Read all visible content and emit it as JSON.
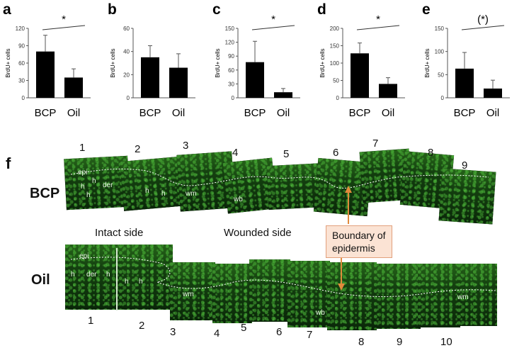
{
  "panels": [
    {
      "letter": "a",
      "ylabel": "BrdU+ cells",
      "yticks": [
        "0",
        "30",
        "60",
        "90",
        "120"
      ],
      "ymax": 120,
      "categories": [
        "BCP",
        "Oil"
      ],
      "values": [
        80,
        35
      ],
      "errors": [
        28,
        15
      ],
      "sig": "*"
    },
    {
      "letter": "b",
      "ylabel": "BrdU+ cells",
      "yticks": [
        "0",
        "20",
        "40",
        "60"
      ],
      "ymax": 60,
      "categories": [
        "BCP",
        "Oil"
      ],
      "values": [
        35,
        26
      ],
      "errors": [
        10,
        12
      ],
      "sig": ""
    },
    {
      "letter": "c",
      "ylabel": "BrdU+ cells",
      "yticks": [
        "0",
        "30",
        "60",
        "90",
        "120",
        "150"
      ],
      "ymax": 150,
      "categories": [
        "BCP",
        "Oil"
      ],
      "values": [
        77,
        12
      ],
      "errors": [
        45,
        8
      ],
      "sig": "*"
    },
    {
      "letter": "d",
      "ylabel": "BrdU+ cells",
      "yticks": [
        "0",
        "50",
        "100",
        "150",
        "200"
      ],
      "ymax": 200,
      "categories": [
        "BCP",
        "Oil"
      ],
      "values": [
        128,
        40
      ],
      "errors": [
        30,
        18
      ],
      "sig": "*"
    },
    {
      "letter": "e",
      "ylabel": "BrdU+ cells",
      "yticks": [
        "0",
        "50",
        "100",
        "150"
      ],
      "ymax": 150,
      "categories": [
        "BCP",
        "Oil"
      ],
      "values": [
        63,
        20
      ],
      "errors": [
        35,
        18
      ],
      "sig": "(*)"
    }
  ],
  "chart_data": [
    {
      "type": "bar",
      "categories": [
        "BCP",
        "Oil"
      ],
      "values": [
        80,
        35
      ],
      "ylabel": "BrdU+ cells",
      "ylim": [
        0,
        120
      ],
      "annotation": "*"
    },
    {
      "type": "bar",
      "categories": [
        "BCP",
        "Oil"
      ],
      "values": [
        35,
        26
      ],
      "ylabel": "BrdU+ cells",
      "ylim": [
        0,
        60
      ]
    },
    {
      "type": "bar",
      "categories": [
        "BCP",
        "Oil"
      ],
      "values": [
        77,
        12
      ],
      "ylabel": "BrdU+ cells",
      "ylim": [
        0,
        150
      ],
      "annotation": "*"
    },
    {
      "type": "bar",
      "categories": [
        "BCP",
        "Oil"
      ],
      "values": [
        128,
        40
      ],
      "ylabel": "BrdU+ cells",
      "ylim": [
        0,
        200
      ],
      "annotation": "*"
    },
    {
      "type": "bar",
      "categories": [
        "BCP",
        "Oil"
      ],
      "values": [
        63,
        20
      ],
      "ylabel": "BrdU+ cells",
      "ylim": [
        0,
        150
      ],
      "annotation": "(*)"
    }
  ],
  "figure_f": {
    "letter": "f",
    "bcp_label": "BCP",
    "oil_label": "Oil",
    "intact_side": "Intact side",
    "wounded_side": "Wounded side",
    "callout_line1": "Boundary of",
    "callout_line2": "epidermis",
    "bcp_numbers": [
      "1",
      "2",
      "3",
      "4",
      "5",
      "6",
      "7",
      "8",
      "9"
    ],
    "oil_numbers": [
      "1",
      "2",
      "3",
      "4",
      "5",
      "6",
      "7",
      "8",
      "9",
      "10"
    ],
    "bcp_tissue": {
      "epi": "epi",
      "h": "h",
      "der": "der",
      "wm": "wm",
      "wb": "wb"
    },
    "oil_tissue": {
      "epi": "epi",
      "h": "h",
      "der": "der",
      "wm": "wm",
      "wb": "wb"
    },
    "colors": {
      "tissue": "#2f7a1f",
      "arrow": "#e08a3c"
    }
  }
}
